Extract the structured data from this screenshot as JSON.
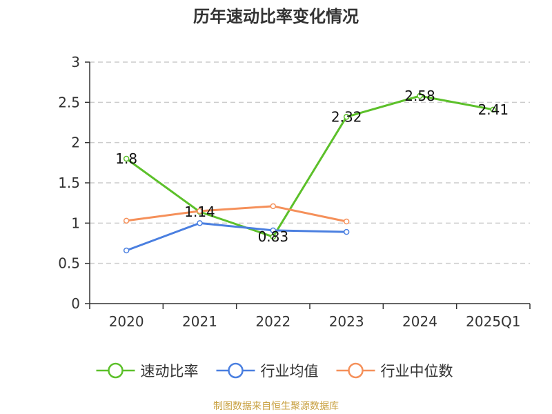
{
  "chart_data": {
    "type": "line",
    "title": "历年速动比率变化情况",
    "categories": [
      "2020",
      "2021",
      "2022",
      "2023",
      "2024",
      "2025Q1"
    ],
    "ylim": [
      0,
      3
    ],
    "yticks": [
      "0",
      "0.5",
      "1",
      "1.5",
      "2",
      "2.5",
      "3"
    ],
    "grid": true,
    "series": [
      {
        "name": "速动比率",
        "color": "#5cc02a",
        "values": [
          1.8,
          1.14,
          0.83,
          2.32,
          2.58,
          2.41
        ],
        "labels": [
          "1.8",
          "1.14",
          "0.83",
          "2.32",
          "2.58",
          "2.41"
        ]
      },
      {
        "name": "行业均值",
        "color": "#4a7fe0",
        "values": [
          0.66,
          1.0,
          0.91,
          0.89,
          null,
          null
        ]
      },
      {
        "name": "行业中位数",
        "color": "#f5905a",
        "values": [
          1.03,
          1.15,
          1.21,
          1.02,
          null,
          null
        ]
      }
    ],
    "legend_position": "bottom"
  },
  "source": "制图数据来自恒生聚源数据库"
}
